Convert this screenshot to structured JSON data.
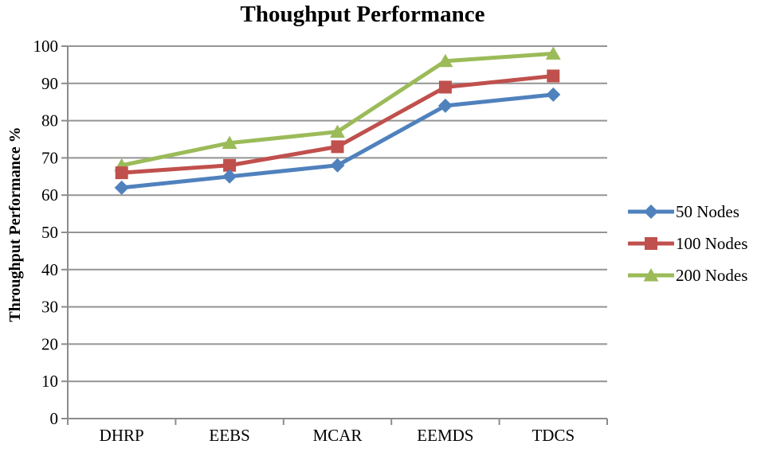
{
  "chart_data": {
    "type": "line",
    "title": "Thoughput Performance",
    "ylabel": "Throughput Performance %",
    "xlabel": "",
    "ylim": [
      0,
      100
    ],
    "ytick_step": 10,
    "grid": "horizontal",
    "legend_position": "right",
    "categories": [
      "DHRP",
      "EEBS",
      "MCAR",
      "EEMDS",
      "TDCS"
    ],
    "series": [
      {
        "name": "50 Nodes",
        "marker": "diamond",
        "color": "#4F81BD",
        "values": [
          62,
          65,
          68,
          84,
          87
        ]
      },
      {
        "name": "100 Nodes",
        "marker": "square",
        "color": "#C0504D",
        "values": [
          66,
          68,
          73,
          89,
          92
        ]
      },
      {
        "name": "200 Nodes",
        "marker": "triangle",
        "color": "#9BBB59",
        "values": [
          68,
          74,
          77,
          96,
          98
        ]
      }
    ],
    "axis_color": "#8C8C8C",
    "gridline_color": "#949494",
    "text_color": "#000000"
  }
}
